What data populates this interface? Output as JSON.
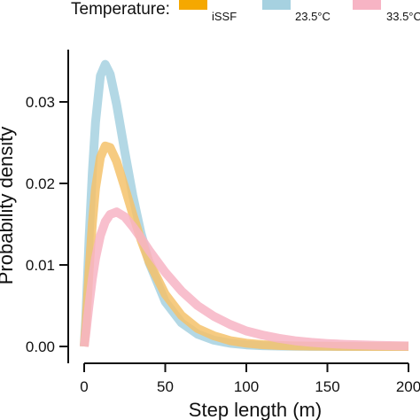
{
  "chart_data": {
    "type": "line",
    "title": "",
    "xlabel": "Step length (m)",
    "ylabel": "Probability density",
    "xlim": [
      0,
      200
    ],
    "ylim": [
      0,
      0.035
    ],
    "x_ticks": [
      0,
      50,
      100,
      150,
      200
    ],
    "y_ticks": [
      0.0,
      0.01,
      0.02,
      0.03
    ],
    "x_tick_labels": [
      "0",
      "50",
      "100",
      "150",
      "200"
    ],
    "y_tick_labels": [
      "0.00",
      "0.01",
      "0.02",
      "0.03"
    ],
    "grid": false,
    "legend": {
      "title": "Temperature:",
      "position": "top"
    },
    "series": [
      {
        "name": "23.5°C",
        "color": "#a6d1e0",
        "x": [
          0,
          1,
          2,
          3,
          5,
          7,
          10,
          13,
          16,
          20,
          25,
          30,
          35,
          40,
          50,
          60,
          70,
          80,
          90,
          100,
          110,
          120,
          130,
          140,
          150,
          160,
          180,
          200
        ],
        "y": [
          0,
          0.0034,
          0.0083,
          0.0131,
          0.0213,
          0.0275,
          0.0332,
          0.0346,
          0.0334,
          0.0297,
          0.0239,
          0.0185,
          0.0139,
          0.0103,
          0.0055,
          0.0029,
          0.0015,
          0.00077,
          0.00039,
          0.0002,
          0.0001,
          5e-05,
          3e-05,
          1e-05,
          1e-05,
          0,
          0,
          0
        ]
      },
      {
        "name": "iSSF",
        "color": "#f5c26b",
        "x": [
          0,
          1,
          2,
          3,
          5,
          7,
          10,
          13,
          16,
          20,
          25,
          30,
          35,
          40,
          50,
          60,
          70,
          80,
          90,
          100,
          110,
          120,
          130,
          140,
          150,
          160,
          180,
          200
        ],
        "y": [
          0,
          0.0024,
          0.0058,
          0.0092,
          0.0151,
          0.0194,
          0.0232,
          0.0246,
          0.0244,
          0.0227,
          0.0195,
          0.0162,
          0.0131,
          0.0104,
          0.0064,
          0.0038,
          0.0022,
          0.0013,
          0.00072,
          0.0004,
          0.00022,
          0.00012,
          7e-05,
          4e-05,
          2e-05,
          1e-05,
          0,
          0
        ]
      },
      {
        "name": "33.5°C",
        "color": "#f7b4c4",
        "x": [
          0,
          1,
          2,
          3,
          5,
          7,
          10,
          13,
          16,
          20,
          25,
          30,
          35,
          40,
          50,
          60,
          70,
          80,
          90,
          100,
          110,
          120,
          130,
          140,
          150,
          160,
          180,
          200
        ],
        "y": [
          0,
          0.0015,
          0.0034,
          0.0051,
          0.0083,
          0.0108,
          0.0136,
          0.0153,
          0.0162,
          0.0165,
          0.0159,
          0.0147,
          0.0133,
          0.0118,
          0.0091,
          0.0068,
          0.005,
          0.0037,
          0.0027,
          0.0019,
          0.0014,
          0.001,
          0.0007,
          0.0005,
          0.00036,
          0.00026,
          0.00013,
          7e-05
        ]
      }
    ]
  }
}
